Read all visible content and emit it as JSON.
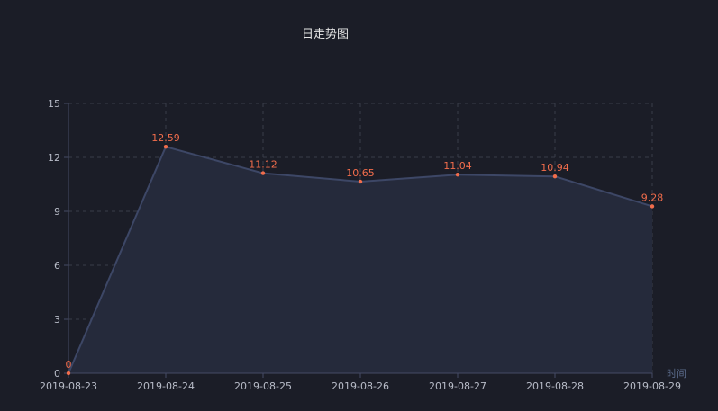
{
  "chart_data": {
    "type": "area",
    "title": "日走势图",
    "xlabel": "时间",
    "ylabel": "",
    "categories": [
      "2019-08-23",
      "2019-08-24",
      "2019-08-25",
      "2019-08-26",
      "2019-08-27",
      "2019-08-28",
      "2019-08-29"
    ],
    "values": [
      0,
      12.59,
      11.12,
      10.65,
      11.04,
      10.94,
      9.28
    ],
    "data_labels": [
      "0",
      "12.59",
      "11.12",
      "10.65",
      "11.04",
      "10.94",
      "9.28"
    ],
    "ylim": [
      0,
      15
    ],
    "yticks": [
      0,
      3,
      6,
      9,
      12,
      15
    ],
    "grid": true,
    "colors": {
      "background": "#1b1d27",
      "line": "#3d4766",
      "area": "#252a3b",
      "point": "#f26d4c",
      "label": "#f26d4c",
      "grid": "#3a3d4a",
      "axis": "#454a66"
    }
  }
}
